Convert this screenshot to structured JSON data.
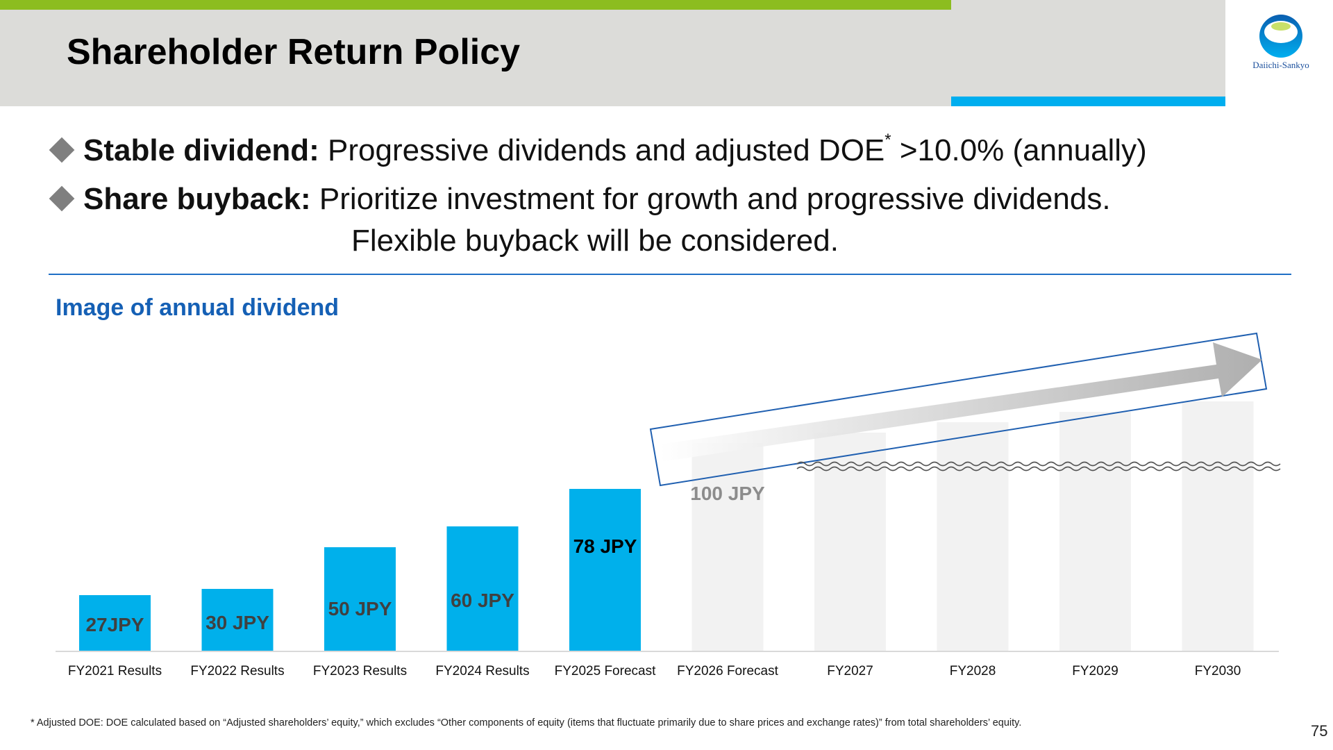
{
  "header": {
    "title": "Shareholder Return Policy",
    "logo_text": "Daiichi-Sankyo",
    "colors": {
      "band": "#dcdcd9",
      "green_strip": "#8cbd1f",
      "blue_strip": "#00aeef"
    }
  },
  "bullets": [
    {
      "bold": "Stable dividend:",
      "text": " Progressive dividends and adjusted DOE",
      "sup": "*",
      "text_after": "  >10.0% (annually)"
    },
    {
      "bold": "Share buyback:",
      "text": " Prioritize investment for growth and progressive dividends.",
      "continuation": "Flexible buyback will be considered."
    }
  ],
  "chart_data": {
    "type": "bar",
    "title": "Image of annual dividend",
    "categories": [
      "FY2021 Results",
      "FY2022 Results",
      "FY2023 Results",
      "FY2024 Results",
      "FY2025 Forecast",
      "FY2026 Forecast",
      "FY2027",
      "FY2028",
      "FY2029",
      "FY2030"
    ],
    "values": [
      27,
      30,
      50,
      60,
      78,
      100,
      null,
      null,
      null,
      null
    ],
    "data_labels": [
      "27JPY",
      "30 JPY",
      "50 JPY",
      "60 JPY",
      "78 JPY",
      "100 JPY",
      "",
      "",
      "",
      ""
    ],
    "ylim": [
      0,
      125
    ],
    "grid": false,
    "annotation": "upward trend arrow from FY2026 to FY2030",
    "colors": {
      "actual": "#00b0eb",
      "future": "#f2f2f2",
      "label_dark": "#404040",
      "label_future": "#8c8c8c"
    }
  },
  "footnote": "* Adjusted DOE: DOE calculated based on “Adjusted shareholders’ equity,” which excludes “Other components of equity (items that fluctuate primarily due to share prices and exchange rates)” from total shareholders’ equity.",
  "page_number": "75"
}
